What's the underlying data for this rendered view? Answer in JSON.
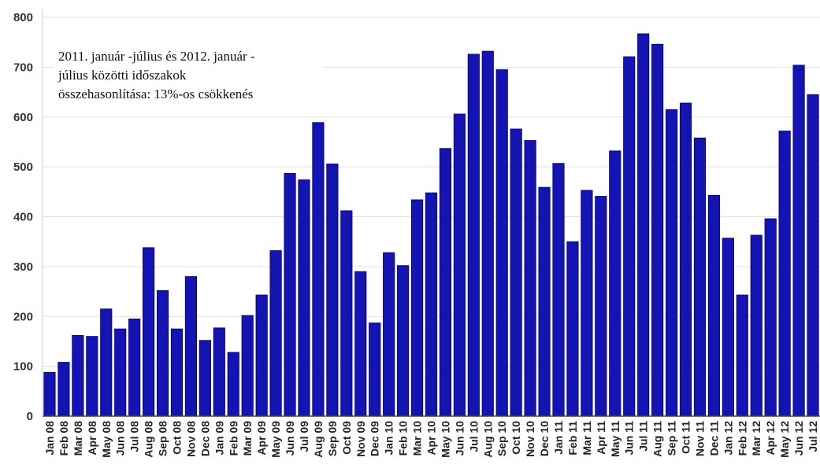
{
  "chart_data": {
    "type": "bar",
    "title": "",
    "xlabel": "",
    "ylabel": "",
    "ylim": [
      0,
      800
    ],
    "yticks": [
      0,
      100,
      200,
      300,
      400,
      500,
      600,
      700,
      800
    ],
    "grid": true,
    "legend": "none",
    "bar_color": "#1414b4",
    "annotation_lines": [
      "2011. január -július és 2012. január -",
      "július közötti időszakok",
      "összehasonlítása: 13%-os csökkenés"
    ],
    "categories": [
      "Jan 08",
      "Feb 08",
      "Mar 08",
      "Apr 08",
      "May 08",
      "Jun 08",
      "Jul 08",
      "Aug 08",
      "Sep 08",
      "Oct 08",
      "Nov 08",
      "Dec 08",
      "Jan 09",
      "Feb 09",
      "Mar 09",
      "Apr 09",
      "May 09",
      "Jun 09",
      "Jul 09",
      "Aug 09",
      "Sep 09",
      "Oct 09",
      "Nov 09",
      "Dec 09",
      "Jan 10",
      "Feb 10",
      "Mar 10",
      "Apr 10",
      "May 10",
      "Jun 10",
      "Jul 10",
      "Aug 10",
      "Sep 10",
      "Oct 10",
      "Nov 10",
      "Dec 10",
      "Jan 11",
      "Feb 11",
      "Mar 11",
      "Apr 11",
      "May 11",
      "Jun 11",
      "Jul 11",
      "Aug 11",
      "Sep 11",
      "Oct 11",
      "Nov 11",
      "Dec 11",
      "Jan 12",
      "Feb 12",
      "Mar 12",
      "Apr 12",
      "May 12",
      "Jun 12",
      "Jul 12"
    ],
    "xtick_labels": [
      "Jan 08",
      "Feb 08",
      "Mar 08",
      "Apr 08",
      "May 08",
      "Jun 08",
      "Jul 08",
      "Aug 08",
      "Sep 08",
      "Oct 08",
      "Nov 08",
      "Dec 08",
      "Jan 09",
      "Feb 09",
      "Mar 09",
      "Apr 09",
      "May 09",
      "Jun 09",
      "Jul 09",
      "Aug 09",
      "Sep 09",
      "Oct 09",
      "Nov 09",
      "Dec 09",
      "Jan 10",
      "Feb 10",
      "Mar 10",
      "Apr 10",
      "May 10",
      "Jun 10",
      "Jul 10",
      "Aug 10",
      "Sep 10",
      "Oct 10",
      "Nov 10",
      "Dec 10",
      "Jan 11",
      "Feb 11",
      "Mar 11",
      "Apr 11",
      "May 11",
      "Jun 11",
      "Jul 11",
      "Aug 11",
      "Sep 11",
      "Oct 11",
      "Nov 11",
      "Dec 11",
      "Jan 12",
      "Feb 12",
      "Mar 12",
      "Apr 12",
      "May 12",
      "Jun 12",
      "Jul 12"
    ],
    "values": [
      88,
      108,
      162,
      160,
      215,
      175,
      195,
      338,
      252,
      175,
      280,
      152,
      177,
      128,
      202,
      243,
      332,
      487,
      474,
      589,
      506,
      412,
      290,
      187,
      328,
      302,
      434,
      448,
      537,
      606,
      726,
      732,
      695,
      576,
      553,
      459,
      507,
      350,
      453,
      441,
      532,
      721,
      767,
      746,
      615,
      628,
      558,
      443,
      357,
      243,
      363,
      396,
      572,
      704,
      645
    ]
  }
}
